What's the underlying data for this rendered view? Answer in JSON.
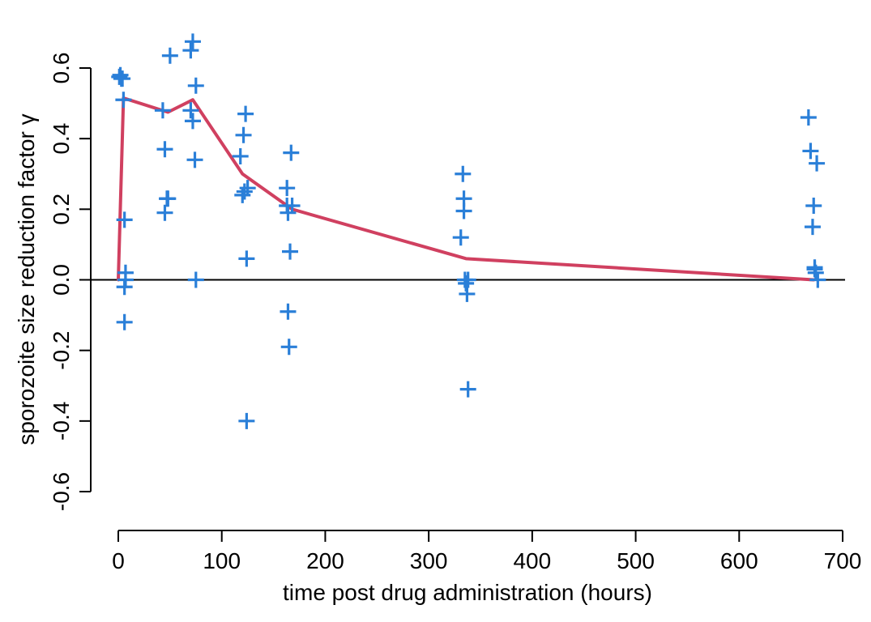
{
  "chart_data": {
    "type": "scatter",
    "xlabel": "time post drug administration (hours)",
    "ylabel": "sporozoite size reduction factor γ",
    "xlim": [
      0,
      700
    ],
    "ylim": [
      -0.6,
      0.6
    ],
    "xticks": [
      0,
      100,
      200,
      300,
      400,
      500,
      600,
      700
    ],
    "yticks": [
      -0.6,
      -0.4,
      -0.2,
      0.0,
      0.2,
      0.4,
      0.6
    ],
    "ytick_labels": [
      "-0.6",
      "-0.4",
      "-0.2",
      "0.0",
      "0.2",
      "0.4",
      "0.6"
    ],
    "reference_line_y": 0,
    "grid": false,
    "colors": {
      "points": "#2a7fd8",
      "mean_line": "#d04060",
      "axis": "#000000"
    },
    "series": [
      {
        "kind": "points",
        "marker": "plus",
        "x": [
          1,
          2,
          3,
          4,
          5,
          6,
          7,
          6,
          6,
          7,
          43,
          45,
          45,
          47,
          48,
          50,
          70,
          72,
          70,
          72,
          74,
          75,
          75,
          118,
          120,
          121,
          122,
          123,
          124,
          124,
          125,
          163,
          163,
          164,
          164,
          165,
          166,
          167,
          168,
          331,
          333,
          334,
          334,
          335,
          336,
          337,
          338,
          338,
          667,
          669,
          671,
          672,
          673,
          673,
          674,
          675,
          676
        ],
        "y": [
          0.575,
          0.58,
          0.57,
          0.57,
          0.51,
          0.17,
          0.02,
          -0.02,
          -0.12,
          0.0,
          0.48,
          0.19,
          0.37,
          0.23,
          0.23,
          0.635,
          0.65,
          0.675,
          0.48,
          0.45,
          0.34,
          0.0,
          0.55,
          0.35,
          0.24,
          0.41,
          0.25,
          0.47,
          0.06,
          -0.4,
          0.26,
          0.26,
          0.21,
          0.19,
          -0.09,
          -0.19,
          0.08,
          0.36,
          0.21,
          0.12,
          0.3,
          0.23,
          0.195,
          0.0,
          -0.01,
          -0.04,
          0.0,
          -0.31,
          0.46,
          0.365,
          0.15,
          0.21,
          0.035,
          0.03,
          0.02,
          0.33,
          0.0
        ]
      },
      {
        "kind": "line",
        "x": [
          0,
          5,
          48,
          72,
          120,
          168,
          336,
          672
        ],
        "y": [
          0.0,
          0.515,
          0.475,
          0.51,
          0.3,
          0.2,
          0.06,
          0.0
        ]
      }
    ]
  }
}
